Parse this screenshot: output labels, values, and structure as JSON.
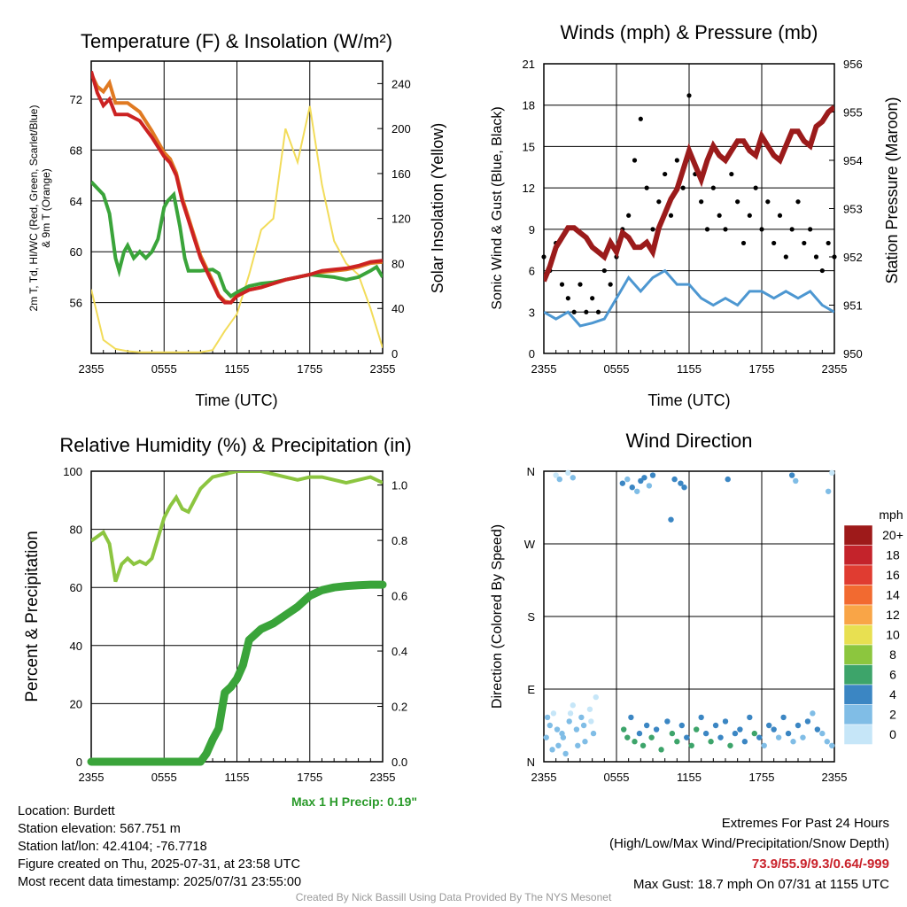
{
  "colors": {
    "temp": "#cc2222",
    "dew": "#3aa43a",
    "wc": "#e07a22",
    "sol": "#f2dc5a",
    "wind": "#4d97d1",
    "gust": "#000000",
    "pres": "#9b1b1b",
    "rh": "#8cc540",
    "precip": "#3aa43a"
  },
  "time_ticks": [
    "2355",
    "0555",
    "1155",
    "1755",
    "2355"
  ],
  "panels": {
    "temp": {
      "title": "Temperature (F) & Insolation (W/m²)",
      "xlabel": "Time (UTC)",
      "ylabel_left_line1": "2m T, Td, HI/WC (Red, Green, Scarlet/Blue)",
      "ylabel_left_line2": "& 9m T (Orange)",
      "ylabel_right": "Solar Insolation (Yellow)"
    },
    "wind": {
      "title": "Winds (mph) & Pressure (mb)",
      "xlabel": "Time (UTC)",
      "ylabel_left": "Sonic Wind & Gust (Blue, Black)",
      "ylabel_right": "Station Pressure (Maroon)"
    },
    "rh": {
      "title": "Relative Humidity (%) & Precipitation (in)",
      "ylabel_left": "Percent & Precipitation",
      "note": "Max 1 H Precip: 0.19\""
    },
    "dir": {
      "title": "Wind Direction",
      "ylabel_left": "Direction (Colored By Speed)",
      "legend_title": "mph"
    }
  },
  "chart_data": [
    {
      "type": "line",
      "id": "temperature",
      "x_unit": "hours since 2355 UTC",
      "ylim": [
        52,
        75
      ],
      "y2lim": [
        0,
        260
      ],
      "yticks": [
        56,
        60,
        64,
        68,
        72
      ],
      "y2ticks": [
        0,
        40,
        80,
        120,
        160,
        200,
        240
      ],
      "series": [
        {
          "x": [
            0,
            0.5,
            1,
            1.5,
            2,
            3,
            4,
            5,
            6,
            6.5,
            7,
            7.5,
            8,
            8.5,
            9,
            9.5,
            10,
            10.5,
            11,
            11.5,
            12,
            13,
            14,
            15,
            16,
            17,
            18,
            19,
            20,
            21,
            22,
            23,
            24
          ],
          "values": [
            74.2,
            72.5,
            71.5,
            72,
            70.8,
            70.8,
            70.3,
            69,
            67.5,
            67,
            66,
            64,
            62.5,
            61,
            59.5,
            58.5,
            57.5,
            56.5,
            56,
            56,
            56.5,
            57,
            57.2,
            57.5,
            57.8,
            58,
            58.2,
            58.5,
            58.6,
            58.7,
            58.9,
            59.2,
            59.3
          ]
        },
        {
          "x": [
            0,
            0.5,
            1,
            1.5,
            2,
            3,
            4,
            5,
            6,
            6.5,
            7,
            7.5,
            8,
            8.5,
            9,
            9.5,
            10,
            10.5,
            11,
            11.5,
            12,
            13,
            14,
            15,
            16,
            17,
            18,
            19,
            20,
            21,
            22,
            23,
            24
          ],
          "values": [
            74,
            73,
            72.6,
            73.3,
            71.7,
            71.7,
            71,
            69.5,
            67.8,
            67.3,
            66.2,
            64.2,
            62.7,
            61.2,
            59.7,
            58.7,
            57.7,
            56.6,
            56.1,
            56,
            56.6,
            57,
            57.2,
            57.5,
            57.8,
            58,
            58.2,
            58.4,
            58.5,
            58.6,
            58.8,
            59.1,
            59.2
          ]
        },
        {
          "x": [
            0,
            1,
            1.5,
            2,
            2.3,
            2.7,
            3,
            3.5,
            4,
            4.5,
            5,
            5.5,
            6,
            6.3,
            6.8,
            7.3,
            7.7,
            8,
            9,
            10,
            10.5,
            11,
            11.5,
            12,
            13,
            14,
            15,
            16,
            17,
            18,
            19,
            20,
            21,
            22,
            23,
            23.5,
            24
          ],
          "values": [
            65.5,
            64.5,
            63,
            59.5,
            58.5,
            60,
            60.5,
            59.5,
            60,
            59.5,
            60,
            61,
            63.5,
            64,
            64.5,
            62,
            59.5,
            58.5,
            58.5,
            58.6,
            58.3,
            57,
            56.5,
            56.8,
            57.3,
            57.5,
            57.6,
            57.8,
            58,
            58.2,
            58.1,
            58,
            57.8,
            58,
            58.5,
            58.8,
            58
          ]
        },
        {
          "x": [
            0,
            1,
            2,
            3,
            4,
            5,
            6,
            7,
            8,
            9,
            10,
            11,
            12,
            13,
            14,
            15,
            16,
            17,
            18,
            19,
            20,
            21,
            22,
            23,
            24
          ],
          "values": [
            57,
            12,
            4,
            2,
            1,
            1,
            1,
            1,
            1,
            1,
            3,
            20,
            35,
            70,
            110,
            120,
            200,
            170,
            220,
            150,
            100,
            80,
            70,
            40,
            5
          ]
        }
      ]
    },
    {
      "type": "line",
      "id": "wind",
      "x_unit": "hours since 2355 UTC",
      "ylim": [
        0,
        21
      ],
      "y2lim": [
        950,
        956
      ],
      "yticks": [
        0,
        3,
        6,
        9,
        12,
        15,
        18,
        21
      ],
      "y2ticks": [
        950,
        951,
        952,
        953,
        954,
        955,
        956
      ],
      "series": [
        {
          "x": [
            0,
            1,
            2,
            3,
            4,
            5,
            6,
            7,
            8,
            9,
            10,
            11,
            12,
            13,
            14,
            15,
            16,
            17,
            18,
            19,
            20,
            21,
            22,
            23,
            24
          ],
          "values": [
            3,
            2.5,
            3,
            2,
            2.2,
            2.5,
            4,
            5.5,
            4.5,
            5.5,
            6,
            5,
            5,
            4,
            3.5,
            4,
            3.5,
            4.5,
            4.5,
            4,
            4.5,
            4,
            4.5,
            3.5,
            3
          ]
        },
        {
          "x": [
            0,
            0.5,
            1,
            1.5,
            2,
            2.5,
            3,
            3.5,
            4,
            4.5,
            5,
            5.5,
            6,
            6.5,
            7,
            7.5,
            8,
            8.5,
            9,
            9.5,
            10,
            10.5,
            11,
            11.5,
            12,
            12.5,
            13,
            13.5,
            14,
            14.5,
            15,
            15.5,
            16,
            16.5,
            17,
            17.5,
            18,
            18.5,
            19,
            19.5,
            20,
            20.5,
            21,
            21.5,
            22,
            22.5,
            23,
            23.5,
            24
          ],
          "values": [
            7,
            6,
            8,
            5,
            4,
            3,
            5,
            3,
            4,
            3,
            6,
            5,
            7,
            9,
            10,
            14,
            17,
            12,
            9,
            11,
            13,
            10,
            14,
            12,
            18.7,
            13,
            11,
            9,
            12,
            10,
            9,
            13,
            11,
            8,
            10,
            12,
            9,
            11,
            8,
            10,
            7,
            9,
            11,
            8,
            9,
            7,
            6,
            8,
            7
          ]
        },
        {
          "x": [
            0,
            0.5,
            1,
            1.5,
            2,
            2.5,
            3,
            3.5,
            4,
            4.5,
            5,
            5.5,
            6,
            6.5,
            7,
            7.5,
            8,
            8.5,
            9,
            9.5,
            10,
            10.5,
            11,
            11.5,
            12,
            12.5,
            13,
            13.5,
            14,
            14.5,
            15,
            15.5,
            16,
            16.5,
            17,
            17.5,
            18,
            18.5,
            19,
            19.5,
            20,
            20.5,
            21,
            21.5,
            22,
            22.5,
            23,
            23.5,
            24
          ],
          "values": [
            951.5,
            951.8,
            952.2,
            952.4,
            952.6,
            952.6,
            952.5,
            952.4,
            952.2,
            952.1,
            952,
            952.3,
            952.1,
            952.5,
            952.4,
            952.2,
            952.2,
            952.3,
            952.1,
            952.6,
            952.9,
            953.2,
            953.4,
            953.8,
            954.2,
            953.9,
            953.6,
            954,
            954.3,
            954.1,
            954,
            954.2,
            954.4,
            954.4,
            954.2,
            954.1,
            954.5,
            954.3,
            954.1,
            954,
            954.3,
            954.6,
            954.6,
            954.4,
            954.3,
            954.7,
            954.8,
            955,
            955.1
          ]
        }
      ]
    },
    {
      "type": "line",
      "id": "humidity_precip",
      "x_unit": "hours since 2355 UTC",
      "ylim": [
        0,
        100
      ],
      "y2lim": [
        0,
        1.05
      ],
      "yticks": [
        0,
        20,
        40,
        60,
        80,
        100
      ],
      "y2ticks": [
        0.0,
        0.2,
        0.4,
        0.6,
        0.8,
        1.0
      ],
      "series": [
        {
          "x": [
            0,
            1,
            1.5,
            2,
            2.5,
            3,
            3.5,
            4,
            4.5,
            5,
            5.5,
            6,
            6.5,
            7,
            7.5,
            8,
            8.5,
            9,
            9.5,
            10,
            11,
            12,
            13,
            14,
            15,
            16,
            17,
            18,
            19,
            20,
            21,
            22,
            23,
            24
          ],
          "values": [
            76,
            79,
            75,
            62,
            68,
            70,
            68,
            69,
            68,
            70,
            77,
            84,
            88,
            91,
            87,
            86,
            90,
            94,
            96,
            98,
            99,
            100,
            100,
            100,
            99,
            98,
            97,
            98,
            98,
            97,
            96,
            97,
            98,
            96
          ]
        },
        {
          "x": [
            0,
            1,
            2,
            3,
            4,
            5,
            6,
            7,
            8,
            9,
            9.5,
            10,
            10.5,
            11,
            11.5,
            12,
            12.5,
            13,
            14,
            15,
            16,
            17,
            18,
            19,
            20,
            21,
            22,
            23,
            24
          ],
          "values": [
            0,
            0,
            0,
            0,
            0,
            0,
            0,
            0,
            0,
            0,
            0.03,
            0.08,
            0.12,
            0.25,
            0.27,
            0.3,
            0.35,
            0.44,
            0.48,
            0.5,
            0.53,
            0.56,
            0.6,
            0.62,
            0.63,
            0.635,
            0.638,
            0.64,
            0.64
          ]
        }
      ]
    },
    {
      "type": "scatter",
      "id": "wind_direction",
      "x_unit": "hours since 2355 UTC",
      "ylim": [
        0,
        360
      ],
      "yticks": [
        "N",
        "E",
        "S",
        "W",
        "N"
      ],
      "series": [
        {
          "x": [
            0.2,
            0.5,
            0.8,
            1.2,
            1.5,
            1.8,
            2.1,
            2.4,
            2.7,
            3.1,
            3.4,
            3.8,
            4.1,
            4.3,
            0.3,
            0.7,
            1.1,
            1.6,
            2.2,
            2.8,
            3.3,
            3.9,
            6.6,
            6.9,
            7.2,
            7.5,
            7.9,
            8.2,
            8.5,
            8.9,
            9.3,
            9.7,
            10.2,
            10.6,
            11.0,
            11.4,
            11.8,
            12.2,
            12.6,
            13.0,
            13.4,
            13.8,
            14.2,
            14.6,
            15.0,
            15.4,
            15.8,
            16.2,
            16.6,
            17.0,
            17.4,
            17.8,
            18.2,
            18.6,
            19.0,
            19.4,
            19.8,
            20.2,
            20.6,
            21.0,
            21.4,
            21.8,
            22.2,
            22.6,
            23.0,
            23.4,
            23.8
          ],
          "values": [
            30,
            45,
            60,
            20,
            35,
            10,
            50,
            70,
            40,
            55,
            25,
            65,
            35,
            80,
            55,
            15,
            40,
            30,
            60,
            20,
            45,
            50,
            40,
            30,
            55,
            25,
            35,
            20,
            45,
            30,
            40,
            15,
            50,
            35,
            25,
            45,
            30,
            20,
            40,
            55,
            35,
            25,
            45,
            30,
            50,
            20,
            35,
            40,
            25,
            55,
            35,
            30,
            20,
            45,
            40,
            30,
            55,
            35,
            25,
            45,
            30,
            50,
            60,
            40,
            35,
            25,
            20
          ],
          "speeds": [
            2,
            2,
            1,
            2,
            3,
            2,
            2,
            1,
            2,
            3,
            2,
            1,
            2,
            1,
            2,
            2,
            3,
            2,
            1,
            2,
            2,
            1,
            7,
            6,
            5,
            7,
            4,
            6,
            5,
            7,
            4,
            6,
            5,
            7,
            6,
            4,
            5,
            7,
            6,
            4,
            5,
            6,
            4,
            5,
            4,
            6,
            5,
            4,
            4,
            5,
            6,
            4,
            3,
            5,
            4,
            3,
            4,
            5,
            3,
            4,
            3,
            4,
            3,
            4,
            3,
            2,
            2
          ]
        },
        {
          "x": [
            1.0,
            1.3,
            2.0,
            2.4,
            6.5,
            6.9,
            7.3,
            7.7,
            8.0,
            8.3,
            8.7,
            9.0,
            10.5,
            10.8,
            11.3,
            11.6,
            15.2,
            20.5,
            20.8,
            23.5,
            23.8
          ],
          "values": [
            355,
            350,
            358,
            352,
            345,
            350,
            340,
            335,
            348,
            352,
            342,
            355,
            300,
            350,
            345,
            340,
            350,
            355,
            348,
            335,
            358
          ],
          "speeds": [
            1,
            2,
            1,
            3,
            4,
            3,
            4,
            3,
            4,
            4,
            3,
            4,
            4,
            5,
            4,
            5,
            4,
            4,
            3,
            2,
            1
          ]
        }
      ]
    }
  ],
  "legend": {
    "labels": [
      "20+",
      "18",
      "16",
      "14",
      "12",
      "10",
      "8",
      "6",
      "4",
      "2",
      "0"
    ],
    "colors": [
      "#9e1a1a",
      "#c4232b",
      "#e03c31",
      "#f26a30",
      "#f9a547",
      "#e8e051",
      "#8cc63e",
      "#3da46a",
      "#3b86c3",
      "#80bde6",
      "#c6e6f8"
    ]
  },
  "info": {
    "location": "Location: Burdett",
    "elevation": "Station elevation: 567.751 m",
    "latlon": "Station lat/lon: 42.4104; -76.7718",
    "created": "Figure created on Thu, 2025-07-31, at 23:58 UTC",
    "recent": "Most recent data timestamp: 2025/07/31 23:55:00"
  },
  "extremes": {
    "line1": "Extremes For Past 24 Hours",
    "line2": "(High/Low/Max Wind/Precipitation/Snow Depth)",
    "values": "73.9/55.9/9.3/0.64/-999",
    "gust": "Max Gust: 18.7 mph On 07/31 at 1155 UTC"
  },
  "credit": "Created By Nick Bassill Using Data Provided By The NYS Mesonet"
}
